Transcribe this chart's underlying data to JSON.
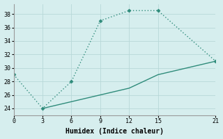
{
  "xlabel": "Humidex (Indice chaleur)",
  "x_upper": [
    0,
    3,
    6,
    9,
    12,
    15,
    21
  ],
  "y_upper": [
    29,
    24,
    28,
    37,
    38.5,
    38.5,
    31
  ],
  "x_lower": [
    3,
    6,
    9,
    12,
    15,
    21
  ],
  "y_lower": [
    24,
    25,
    26,
    27,
    29,
    31
  ],
  "line_color": "#2e8b7a",
  "marker": "D",
  "marker_size": 2.5,
  "xlim": [
    0,
    21
  ],
  "ylim": [
    23,
    39.5
  ],
  "xticks": [
    0,
    3,
    6,
    9,
    12,
    15,
    21
  ],
  "yticks": [
    24,
    26,
    28,
    30,
    32,
    34,
    36,
    38
  ],
  "bg_color": "#d6eeee",
  "grid_color": "#b8d8d8",
  "font_family": "monospace"
}
